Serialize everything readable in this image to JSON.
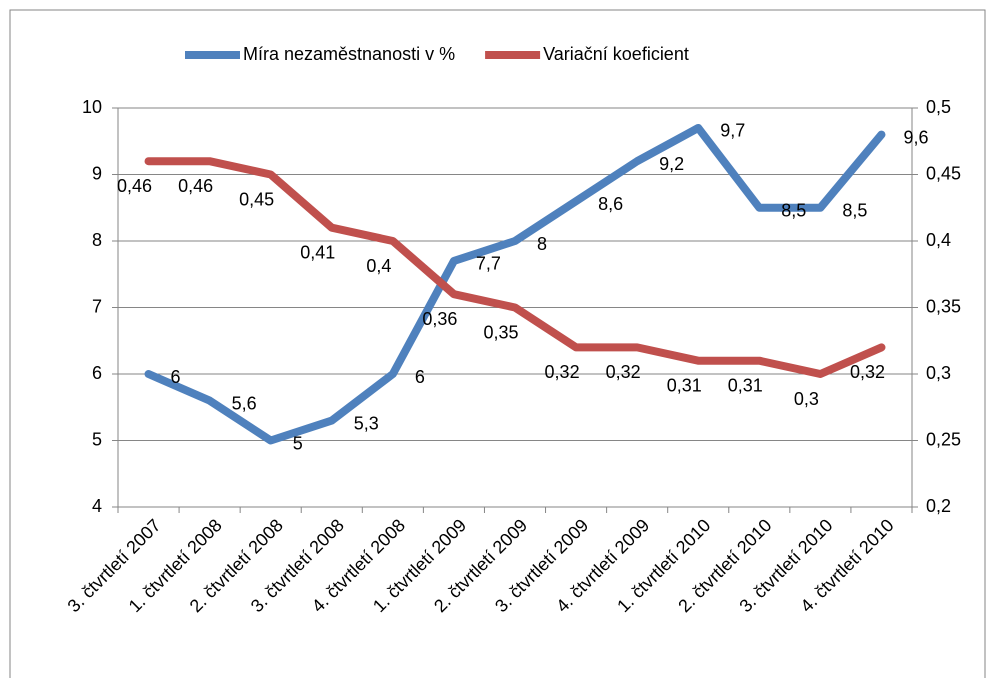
{
  "chart_data": {
    "type": "line",
    "categories": [
      "3. čtvrtletí 2007",
      "1. čtvrtletí 2008",
      "2. čtvrtletí 2008",
      "3. čtvrtletí 2008",
      "4. čtvrtletí 2008",
      "1. čtvrtletí 2009",
      "2. čtvrtletí 2009",
      "3. čtvrtletí 2009",
      "4. čtvrtletí 2009",
      "1. čtvrtletí 2010",
      "2. čtvrtletí 2010",
      "3. čtvrtletí 2010",
      "4. čtvrtletí 2010"
    ],
    "series": [
      {
        "name": "Míra nezaměstnanosti v %",
        "color": "#4f81bd",
        "axis": "y",
        "values": [
          6,
          5.6,
          5,
          5.3,
          6,
          7.7,
          8,
          8.6,
          9.2,
          9.7,
          8.5,
          8.5,
          9.6
        ],
        "value_labels": [
          "6",
          "5,6",
          "5",
          "5,3",
          "6",
          "7,7",
          "8",
          "8,6",
          "9,2",
          "9,7",
          "8,5",
          "8,5",
          "9,6"
        ]
      },
      {
        "name": "Variační koeficient",
        "color": "#c0504d",
        "axis": "y2",
        "values": [
          0.46,
          0.46,
          0.45,
          0.41,
          0.4,
          0.36,
          0.35,
          0.32,
          0.32,
          0.31,
          0.31,
          0.3,
          0.32
        ],
        "value_labels": [
          "0,46",
          "0,46",
          "0,45",
          "0,41",
          "0,4",
          "0,36",
          "0,35",
          "0,32",
          "0,32",
          "0,31",
          "0,31",
          "0,3",
          "0,32"
        ]
      }
    ],
    "ylim": [
      4,
      10
    ],
    "yticks": [
      4,
      5,
      6,
      7,
      8,
      9,
      10
    ],
    "y2lim": [
      0.2,
      0.5
    ],
    "y2ticks": [
      {
        "value": 0.2,
        "label": "0,2"
      },
      {
        "value": 0.25,
        "label": "0,25"
      },
      {
        "value": 0.3,
        "label": "0,3"
      },
      {
        "value": 0.35,
        "label": "0,35"
      },
      {
        "value": 0.4,
        "label": "0,4"
      },
      {
        "value": 0.45,
        "label": "0,45"
      },
      {
        "value": 0.5,
        "label": "0,5"
      }
    ],
    "grid": true,
    "legend": "top"
  }
}
